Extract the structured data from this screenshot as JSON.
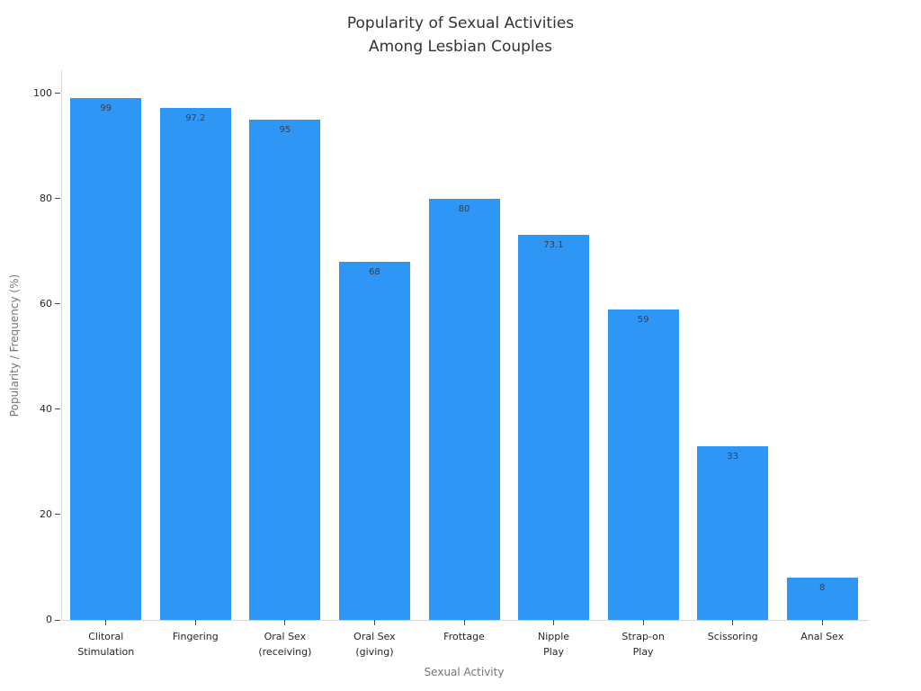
{
  "chart_data": {
    "type": "bar",
    "title": "Popularity of Sexual Activities\nAmong Lesbian Couples",
    "xlabel": "Sexual Activity",
    "ylabel": "Popularity / Frequency (%)",
    "categories": [
      "Clitoral\nStimulation",
      "Fingering",
      "Oral Sex\n(receiving)",
      "Oral Sex\n(giving)",
      "Frottage",
      "Nipple\nPlay",
      "Strap-on\nPlay",
      "Scissoring",
      "Anal Sex"
    ],
    "values": [
      99,
      97.2,
      95,
      68,
      80,
      73.1,
      59,
      33,
      8
    ],
    "value_labels": [
      "99",
      "97.2",
      "95",
      "68",
      "80",
      "73.1",
      "59",
      "33",
      "8"
    ],
    "yticks": [
      0,
      20,
      40,
      60,
      80,
      100
    ],
    "ylim": [
      0,
      100
    ],
    "grid": false,
    "legend": false,
    "colors": {
      "bar": "#2e96f5",
      "axis_line": "#d6d6d6",
      "tick_mark": "#4d4d4d",
      "tick_label": "#262626",
      "axis_title": "#757575",
      "chart_title": "#323232",
      "value_label": "#3a3f47",
      "background": "#ffffff"
    }
  }
}
